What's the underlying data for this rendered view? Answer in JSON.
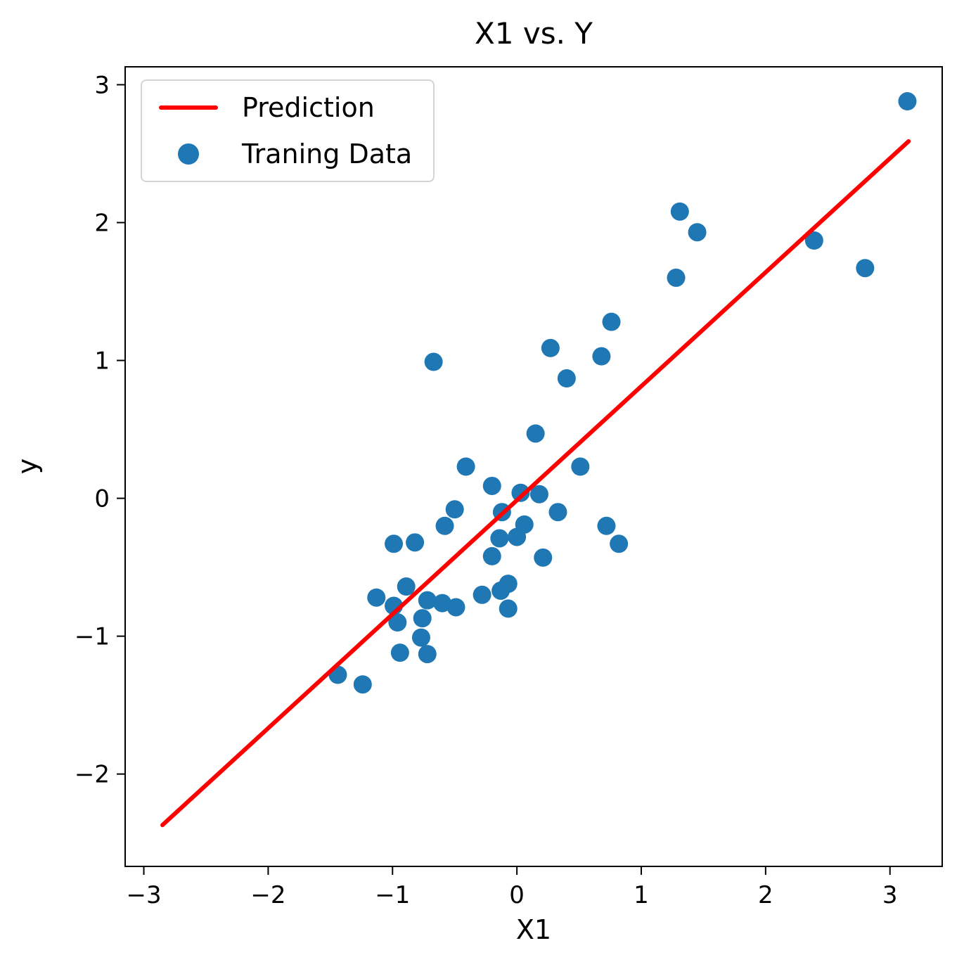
{
  "chart_data": {
    "type": "scatter",
    "title": "X1 vs. Y",
    "xlabel": "X1",
    "ylabel": "y",
    "grid": false,
    "xlim": [
      -3.15,
      3.42
    ],
    "ylim": [
      -2.67,
      3.13
    ],
    "xticks": {
      "values": [
        -3,
        -2,
        -1,
        0,
        1,
        2,
        3
      ],
      "labels": [
        "−3",
        "−2",
        "−1",
        "0",
        "1",
        "2",
        "3"
      ]
    },
    "yticks": {
      "values": [
        3,
        2,
        1,
        0,
        -1,
        -2
      ],
      "labels": [
        "3",
        "2",
        "1",
        "0",
        "−1",
        "−2"
      ]
    },
    "legend": {
      "position": "upper left",
      "entries": [
        {
          "label": "Prediction",
          "type": "line",
          "color": "#ff0000"
        },
        {
          "label": "Traning Data",
          "type": "marker",
          "color": "#1f77b4"
        }
      ]
    },
    "series": [
      {
        "name": "Prediction",
        "type": "line",
        "color": "#ff0000",
        "linewidth": 6,
        "points": [
          [
            -2.85,
            -2.37
          ],
          [
            3.15,
            2.59
          ]
        ]
      },
      {
        "name": "Traning Data",
        "type": "scatter",
        "color": "#1f77b4",
        "marker_radius": 13,
        "points": [
          [
            3.14,
            2.88
          ],
          [
            1.31,
            2.08
          ],
          [
            1.45,
            1.93
          ],
          [
            2.39,
            1.87
          ],
          [
            2.8,
            1.67
          ],
          [
            1.28,
            1.6
          ],
          [
            0.76,
            1.28
          ],
          [
            0.27,
            1.09
          ],
          [
            0.68,
            1.03
          ],
          [
            -0.67,
            0.99
          ],
          [
            0.4,
            0.87
          ],
          [
            0.15,
            0.47
          ],
          [
            0.51,
            0.23
          ],
          [
            -0.41,
            0.23
          ],
          [
            -0.2,
            0.09
          ],
          [
            0.03,
            0.04
          ],
          [
            0.18,
            0.03
          ],
          [
            -0.5,
            -0.08
          ],
          [
            -0.12,
            -0.1
          ],
          [
            0.33,
            -0.1
          ],
          [
            -0.58,
            -0.2
          ],
          [
            0.06,
            -0.19
          ],
          [
            0.72,
            -0.2
          ],
          [
            -0.14,
            -0.29
          ],
          [
            0.0,
            -0.28
          ],
          [
            -0.99,
            -0.33
          ],
          [
            -0.82,
            -0.32
          ],
          [
            0.82,
            -0.33
          ],
          [
            -0.2,
            -0.42
          ],
          [
            0.21,
            -0.43
          ],
          [
            -0.89,
            -0.64
          ],
          [
            -0.07,
            -0.62
          ],
          [
            -1.13,
            -0.72
          ],
          [
            -0.28,
            -0.7
          ],
          [
            -0.13,
            -0.67
          ],
          [
            -0.99,
            -0.78
          ],
          [
            -0.72,
            -0.74
          ],
          [
            -0.6,
            -0.76
          ],
          [
            -0.49,
            -0.79
          ],
          [
            -0.07,
            -0.8
          ],
          [
            -0.96,
            -0.9
          ],
          [
            -0.76,
            -0.87
          ],
          [
            -0.77,
            -1.01
          ],
          [
            -0.94,
            -1.12
          ],
          [
            -0.72,
            -1.13
          ],
          [
            -1.44,
            -1.28
          ],
          [
            -1.24,
            -1.35
          ]
        ]
      }
    ]
  }
}
